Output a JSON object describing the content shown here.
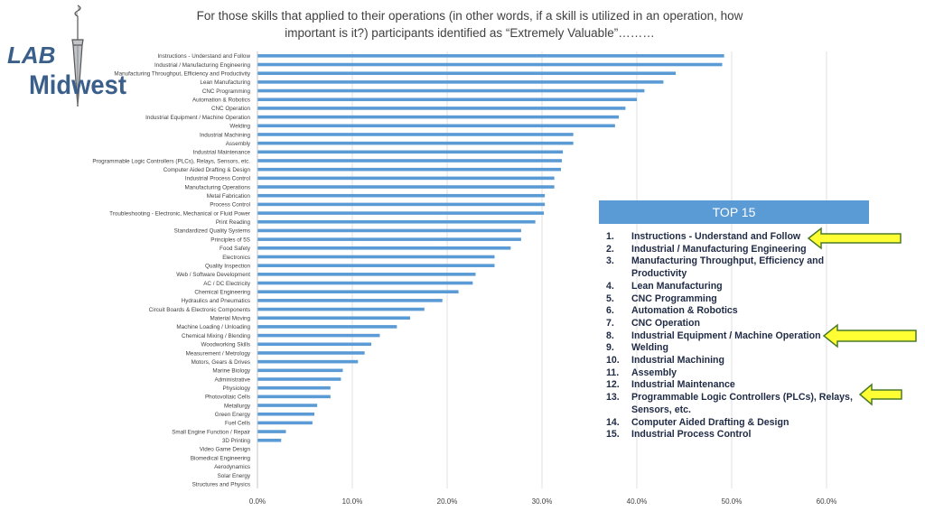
{
  "title": {
    "line1": "For those skills that applied to their operations (in other words, if a skill is utilized in an operation, how",
    "line2": "important is it?) participants identified as “Extremely Valuable”………"
  },
  "logo": {
    "text_top": "LAB",
    "text_bottom": "Midwest",
    "color": "#3a5f8a"
  },
  "colors": {
    "bar": "#5b9bd5",
    "grid": "#d9d9d9",
    "label": "#404040",
    "arrow_fill": "#ffff33",
    "arrow_stroke": "#4a7a2a"
  },
  "chart_data": {
    "type": "bar",
    "orientation": "horizontal",
    "title": "",
    "xlabel": "",
    "ylabel": "",
    "xlim": [
      0,
      0.6
    ],
    "xticks": [
      "0.0%",
      "10.0%",
      "20.0%",
      "30.0%",
      "40.0%",
      "50.0%",
      "60.0%"
    ],
    "grid": true,
    "categories": [
      "Instructions - Understand and Follow",
      "Industrial / Manufacturing Engineering",
      "Manufacturing Throughput, Efficiency and Productivity",
      "Lean Manufacturing",
      "CNC Programming",
      "Automation & Robotics",
      "CNC Operation",
      "Industrial Equipment / Machine Operation",
      "Welding",
      "Industrial Machining",
      "Assembly",
      "Industrial Maintenance",
      "Programmable Logic Controllers (PLCs), Relays, Sensors, etc.",
      "Computer Aided Drafting & Design",
      "Industrial Process Control",
      "Manufacturing Operations",
      "Metal Fabrication",
      "Process Control",
      "Troubleshooting - Electronic, Mechanical or Fluid Power",
      "Print Reading",
      "Standardized Quality Systems",
      "Principles of 5S",
      "Food Safety",
      "Electronics",
      "Quality Inspection",
      "Web / Software Development",
      "AC / DC Electricity",
      "Chemical Engineering",
      "Hydraulics and Pneumatics",
      "Circuit Boards & Electronic Components",
      "Material Moving",
      "Machine Loading / Unloading",
      "Chemical Mixing / Blending",
      "Woodworking Skills",
      "Measurement / Metrology",
      "Motors, Gears & Drives",
      "Marine Biology",
      "Administrative",
      "Physiology",
      "Photovoltaic Cells",
      "Metallurgy",
      "Green Energy",
      "Fuel Cells",
      "Small Engine Function / Repair",
      "3D Printing",
      "Video Game Design",
      "Biomedical Engineering",
      "Aerodynamics",
      "Solar Energy",
      "Structures and Physics"
    ],
    "values": [
      0.492,
      0.49,
      0.441,
      0.428,
      0.408,
      0.4,
      0.388,
      0.381,
      0.377,
      0.333,
      0.333,
      0.322,
      0.321,
      0.32,
      0.313,
      0.313,
      0.303,
      0.303,
      0.302,
      0.293,
      0.278,
      0.278,
      0.267,
      0.25,
      0.25,
      0.23,
      0.227,
      0.212,
      0.195,
      0.176,
      0.161,
      0.147,
      0.129,
      0.12,
      0.113,
      0.106,
      0.09,
      0.088,
      0.077,
      0.077,
      0.063,
      0.06,
      0.058,
      0.03,
      0.025,
      0,
      0,
      0,
      0,
      0
    ]
  },
  "top15": {
    "header": "TOP 15",
    "items": [
      {
        "num": "1.",
        "text": "Instructions - Understand and Follow"
      },
      {
        "num": "2.",
        "text": "Industrial / Manufacturing Engineering"
      },
      {
        "num": "3.",
        "text": "Manufacturing Throughput, Efficiency and Productivity"
      },
      {
        "num": "4.",
        "text": "Lean Manufacturing"
      },
      {
        "num": "5.",
        "text": "CNC Programming"
      },
      {
        "num": "6.",
        "text": "Automation & Robotics"
      },
      {
        "num": "7.",
        "text": "CNC Operation"
      },
      {
        "num": "8.",
        "text": "Industrial Equipment / Machine Operation"
      },
      {
        "num": "9.",
        "text": "Welding"
      },
      {
        "num": "10.",
        "text": "Industrial Machining"
      },
      {
        "num": "11.",
        "text": "Assembly"
      },
      {
        "num": "12.",
        "text": "Industrial Maintenance"
      },
      {
        "num": "13.",
        "text": "Programmable Logic Controllers (PLCs), Relays, Sensors, etc."
      },
      {
        "num": "14.",
        "text": "Computer Aided Drafting & Design"
      },
      {
        "num": "15.",
        "text": "Industrial Process Control"
      }
    ]
  }
}
